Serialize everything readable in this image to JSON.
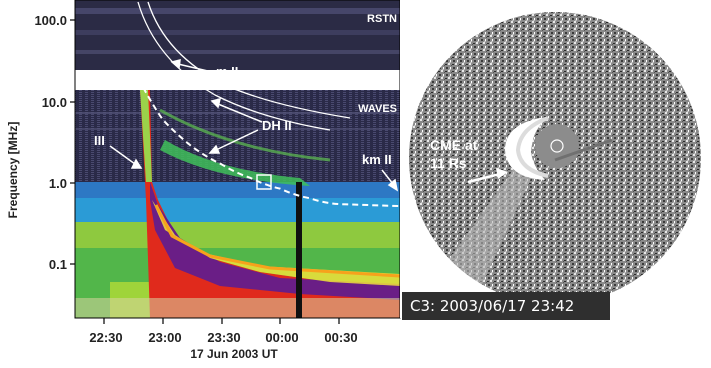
{
  "chart_data": {
    "type": "heatmap",
    "title": "",
    "xlabel": "17 Jun 2003 UT",
    "ylabel": "Frequency [MHz]",
    "y_scale": "log",
    "ylim": [
      0.02,
      250
    ],
    "xlim": [
      "22:00",
      "00:53"
    ],
    "x_ticks": [
      "22:30",
      "23:00",
      "23:30",
      "00:00",
      "00:30"
    ],
    "y_ticks": [
      "100.0",
      "10.0",
      "1.0",
      "0.1"
    ],
    "panel_labels": [
      "RSTN",
      "WAVES"
    ],
    "annotations": [
      "m II",
      "DH II",
      "III",
      "km II"
    ],
    "km_II_fit": {
      "description": "",
      "points": [
        {
          "t": "22:50",
          "f": 15.0
        },
        {
          "t": "23:00",
          "f": 6.0
        },
        {
          "t": "23:15",
          "f": 2.8
        },
        {
          "t": "23:30",
          "f": 1.7
        },
        {
          "t": "23:45",
          "f": 1.15
        },
        {
          "t": "00:00",
          "f": 0.85
        },
        {
          "t": "00:15",
          "f": 0.65
        },
        {
          "t": "00:30",
          "f": 0.55
        }
      ]
    }
  },
  "coronagraph": {
    "label_line1": "CME at",
    "label_line2": "11 Rs",
    "caption": "C3: 2003/06/17 23:42"
  }
}
